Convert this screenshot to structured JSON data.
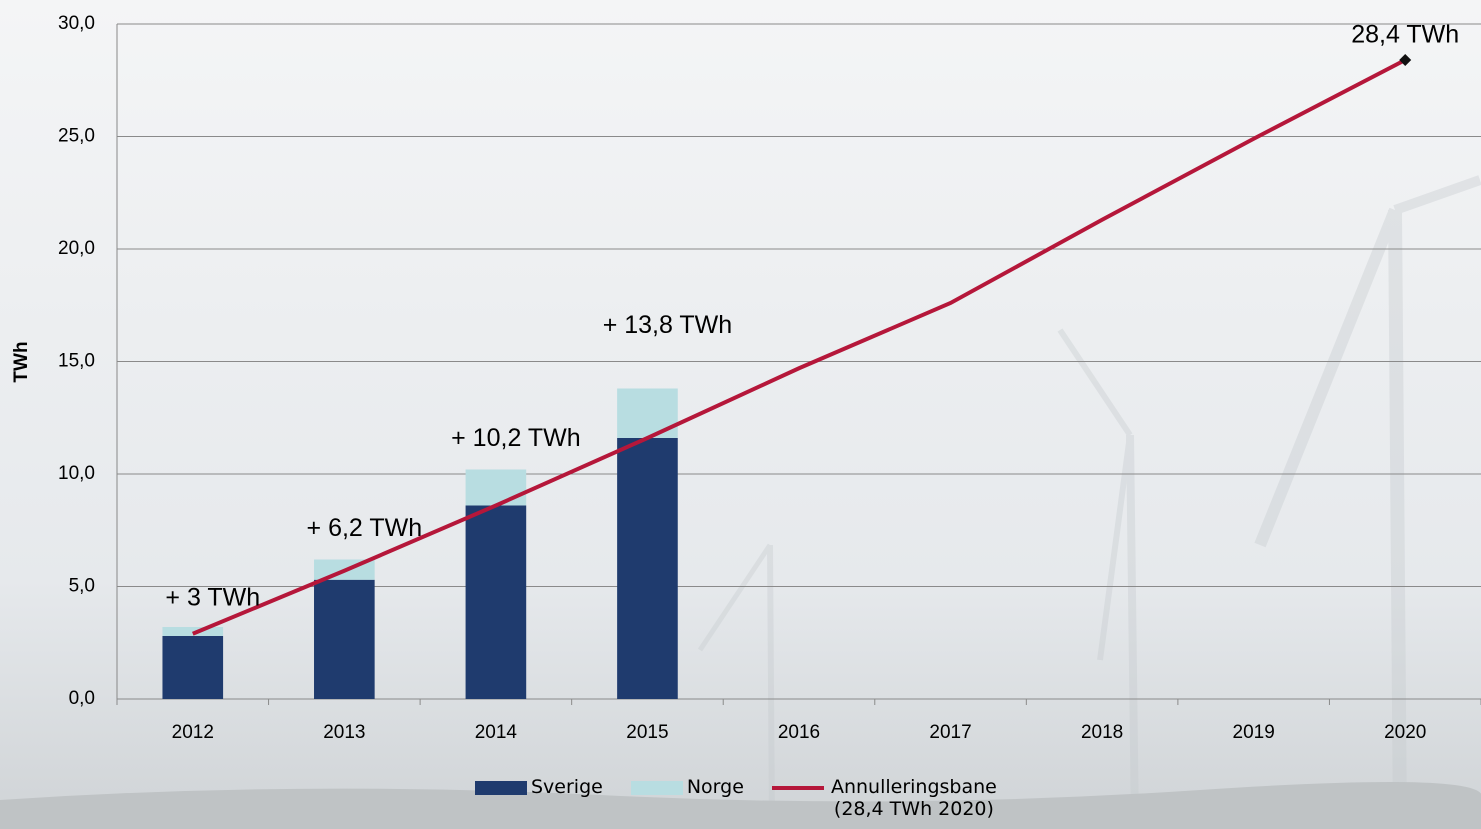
{
  "chart_data": {
    "type": "bar",
    "y_label": "TWh",
    "categories": [
      "2012",
      "2013",
      "2014",
      "2015",
      "2016",
      "2017",
      "2018",
      "2019",
      "2020"
    ],
    "stacked": true,
    "series": [
      {
        "name": "Sverige",
        "type": "bar",
        "color": "#1f3b6e",
        "values": [
          2.8,
          5.3,
          8.6,
          11.6,
          null,
          null,
          null,
          null,
          null
        ]
      },
      {
        "name": "Norge",
        "type": "bar",
        "color": "#b8dde1",
        "values": [
          0.4,
          0.9,
          1.6,
          2.2,
          null,
          null,
          null,
          null,
          null
        ]
      },
      {
        "name": "Annulleringsbane (28,4 TWh 2020)",
        "type": "line",
        "color": "#b5173a",
        "values": [
          2.9,
          5.7,
          8.6,
          11.6,
          14.7,
          17.6,
          21.3,
          24.9,
          28.4
        ],
        "value_labels": [
          null,
          null,
          null,
          null,
          null,
          null,
          null,
          null,
          "28,4 TWh"
        ]
      }
    ],
    "annotations": [
      "+ 3 TWh",
      "+ 6,2 TWh",
      "+ 10,2 TWh",
      "+ 13,8 TWh"
    ],
    "ylim": [
      0,
      30
    ],
    "yticks": [
      {
        "value": 0,
        "label": "0,0"
      },
      {
        "value": 5,
        "label": "5,0"
      },
      {
        "value": 10,
        "label": "10,0"
      },
      {
        "value": 15,
        "label": "15,0"
      },
      {
        "value": 20,
        "label": "20,0"
      },
      {
        "value": 25,
        "label": "25,0"
      },
      {
        "value": 30,
        "label": "30,0"
      }
    ],
    "grid": true,
    "legend": "bottom"
  }
}
